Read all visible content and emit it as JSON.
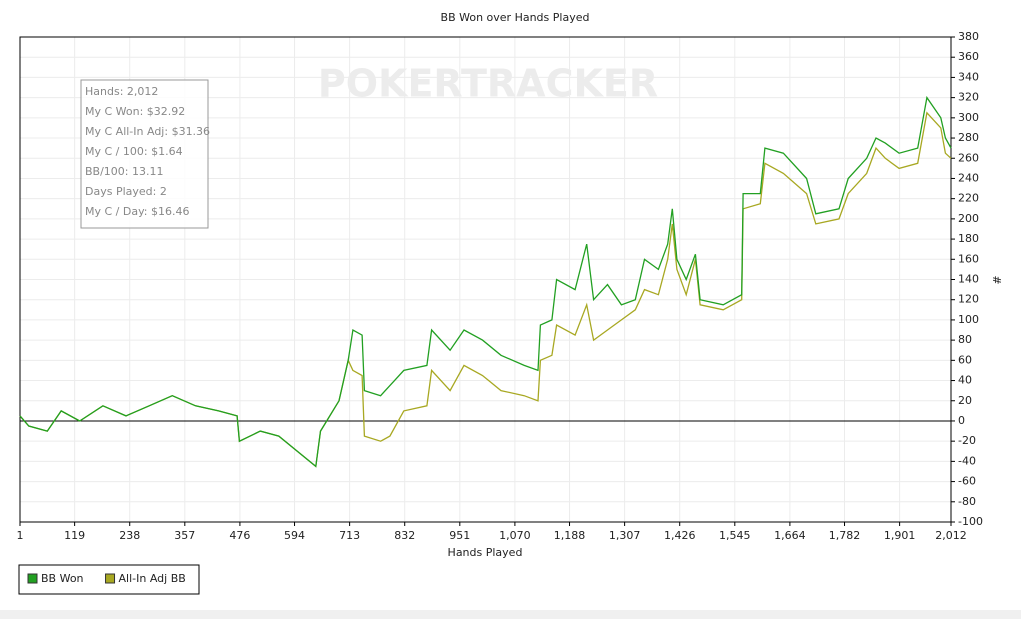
{
  "chart_data": {
    "type": "line",
    "title": "BB Won over Hands Played",
    "x_label": "Hands Played",
    "y_label": "#",
    "watermark": "POKERTRACKER",
    "annotation": [
      "Hands: 2,012",
      "My C Won: $32.92",
      "My C All-In Adj: $31.36",
      "My C / 100: $1.64",
      "BB/100: 13.11",
      "Days Played: 2",
      "My C / Day: $16.46"
    ],
    "x": [
      1,
      20,
      60,
      90,
      130,
      180,
      230,
      280,
      330,
      380,
      430,
      470,
      475,
      520,
      560,
      600,
      640,
      650,
      690,
      710,
      720,
      740,
      745,
      780,
      800,
      830,
      880,
      890,
      930,
      960,
      1000,
      1040,
      1090,
      1120,
      1125,
      1150,
      1160,
      1200,
      1225,
      1240,
      1270,
      1300,
      1330,
      1350,
      1380,
      1400,
      1410,
      1420,
      1440,
      1460,
      1470,
      1520,
      1560,
      1563,
      1600,
      1610,
      1650,
      1700,
      1720,
      1770,
      1790,
      1830,
      1850,
      1870,
      1900,
      1940,
      1960,
      1990,
      2000,
      2012
    ],
    "series": [
      {
        "name": "BB Won",
        "color": "#22a022",
        "values": [
          5,
          -5,
          -10,
          10,
          0,
          15,
          5,
          15,
          25,
          15,
          10,
          5,
          -20,
          -10,
          -15,
          -30,
          -45,
          -10,
          20,
          60,
          90,
          85,
          30,
          25,
          35,
          50,
          55,
          90,
          70,
          90,
          80,
          65,
          55,
          50,
          95,
          100,
          140,
          130,
          175,
          120,
          135,
          115,
          120,
          160,
          150,
          175,
          210,
          160,
          140,
          165,
          120,
          115,
          125,
          225,
          225,
          270,
          265,
          240,
          205,
          210,
          240,
          260,
          280,
          275,
          265,
          270,
          320,
          300,
          280,
          270
        ]
      },
      {
        "name": "All-In Adj BB",
        "color": "#a8a822",
        "values": [
          5,
          -5,
          -10,
          10,
          0,
          15,
          5,
          15,
          25,
          15,
          10,
          5,
          -20,
          -10,
          -15,
          -30,
          -45,
          -10,
          20,
          60,
          50,
          45,
          -15,
          -20,
          -15,
          10,
          15,
          50,
          30,
          55,
          45,
          30,
          25,
          20,
          60,
          65,
          95,
          85,
          115,
          80,
          90,
          100,
          110,
          130,
          125,
          160,
          195,
          150,
          125,
          160,
          115,
          110,
          120,
          210,
          215,
          255,
          245,
          225,
          195,
          200,
          225,
          245,
          270,
          260,
          250,
          255,
          305,
          290,
          265,
          260
        ]
      }
    ],
    "xlim": [
      1,
      2012
    ],
    "xticks": [
      1,
      119,
      238,
      357,
      476,
      594,
      713,
      832,
      951,
      {
        "value": 1070,
        "label": "1,070"
      },
      {
        "value": 1188,
        "label": "1,188"
      },
      {
        "value": 1307,
        "label": "1,307"
      },
      {
        "value": 1426,
        "label": "1,426"
      },
      {
        "value": 1545,
        "label": "1,545"
      },
      {
        "value": 1664,
        "label": "1,664"
      },
      {
        "value": 1782,
        "label": "1,782"
      },
      {
        "value": 1901,
        "label": "1,901"
      },
      {
        "value": 2012,
        "label": "2,012"
      }
    ],
    "ylim": [
      -100,
      380
    ],
    "yticks": [
      -100,
      -80,
      -60,
      -40,
      -20,
      0,
      20,
      40,
      60,
      80,
      100,
      120,
      140,
      160,
      180,
      200,
      220,
      240,
      260,
      280,
      300,
      320,
      340,
      360,
      380
    ],
    "grid": true,
    "legend": "bottom-left"
  }
}
